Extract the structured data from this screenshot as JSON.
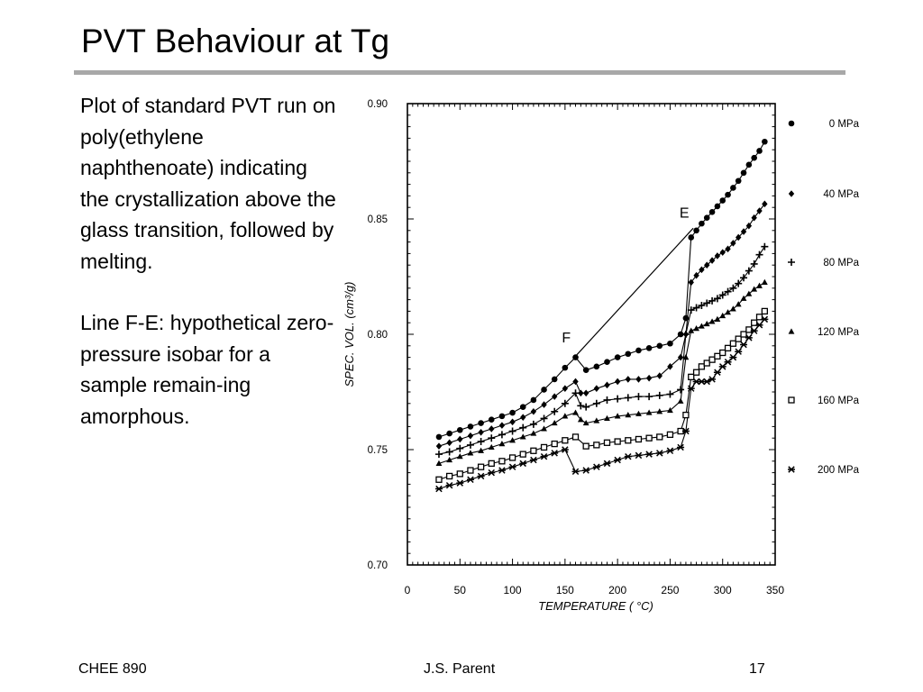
{
  "slide": {
    "title": "PVT Behaviour at Tg",
    "description": [
      "Plot of standard PVT run on poly(ethylene naphthenoate) indicating the crystallization above the glass transition, followed by melting.",
      "Line F-E: hypothetical zero-pressure isobar for a sample remain-ing amorphous."
    ]
  },
  "footer": {
    "left": "CHEE 890",
    "center": "J.S. Parent",
    "right": "17"
  },
  "chart_data": {
    "type": "line",
    "title": "",
    "xlabel": "TEMPERATURE ( °C)",
    "ylabel": "SPEC. VOL. (cm³/g)",
    "xlim": [
      0,
      350
    ],
    "ylim": [
      0.7,
      0.9
    ],
    "xticks": [
      "0",
      "50",
      "100",
      "150",
      "200",
      "250",
      "300",
      "350"
    ],
    "yticks": [
      "0.70",
      "0.75",
      "0.80",
      "0.85",
      "0.90"
    ],
    "grid": false,
    "legend_position": "right",
    "series": [
      {
        "name": "0 MPa",
        "marker": "circle",
        "x": [
          30,
          40,
          50,
          60,
          70,
          80,
          90,
          100,
          110,
          120,
          130,
          140,
          150,
          160,
          170,
          180,
          190,
          200,
          210,
          220,
          230,
          240,
          250,
          260,
          265,
          270,
          275,
          280,
          285,
          290,
          295,
          300,
          305,
          310,
          315,
          320,
          325,
          330,
          335,
          340
        ],
        "y": [
          0.7555,
          0.757,
          0.7585,
          0.76,
          0.7615,
          0.763,
          0.7645,
          0.766,
          0.7685,
          0.7715,
          0.776,
          0.7805,
          0.7855,
          0.79,
          0.7845,
          0.786,
          0.788,
          0.79,
          0.7915,
          0.793,
          0.794,
          0.795,
          0.796,
          0.8,
          0.807,
          0.842,
          0.845,
          0.848,
          0.8505,
          0.853,
          0.8555,
          0.858,
          0.8605,
          0.8635,
          0.8665,
          0.87,
          0.8735,
          0.8765,
          0.8795,
          0.8835
        ]
      },
      {
        "name": "40 MPa",
        "marker": "diamond",
        "x": [
          30,
          40,
          50,
          60,
          70,
          80,
          90,
          100,
          110,
          120,
          130,
          140,
          150,
          160,
          165,
          170,
          180,
          190,
          200,
          210,
          220,
          230,
          240,
          250,
          260,
          265,
          270,
          275,
          280,
          285,
          290,
          295,
          300,
          305,
          310,
          315,
          320,
          325,
          330,
          335,
          340
        ],
        "y": [
          0.7515,
          0.753,
          0.7545,
          0.756,
          0.7575,
          0.759,
          0.7605,
          0.762,
          0.764,
          0.7665,
          0.7695,
          0.773,
          0.7765,
          0.7795,
          0.7745,
          0.7745,
          0.7765,
          0.778,
          0.7795,
          0.7805,
          0.7805,
          0.781,
          0.782,
          0.786,
          0.79,
          0.8,
          0.8225,
          0.8255,
          0.828,
          0.83,
          0.832,
          0.834,
          0.8355,
          0.837,
          0.8395,
          0.842,
          0.8445,
          0.847,
          0.8505,
          0.8535,
          0.8565
        ]
      },
      {
        "name": "80 MPa",
        "marker": "plus",
        "x": [
          30,
          40,
          50,
          60,
          70,
          80,
          90,
          100,
          110,
          120,
          130,
          140,
          150,
          160,
          165,
          170,
          180,
          190,
          200,
          210,
          220,
          230,
          240,
          250,
          260,
          265,
          270,
          275,
          280,
          285,
          290,
          295,
          300,
          305,
          310,
          315,
          320,
          325,
          330,
          335,
          340
        ],
        "y": [
          0.748,
          0.749,
          0.7505,
          0.752,
          0.7535,
          0.755,
          0.7565,
          0.758,
          0.7595,
          0.761,
          0.7635,
          0.7665,
          0.77,
          0.7745,
          0.769,
          0.7685,
          0.77,
          0.7715,
          0.772,
          0.7725,
          0.773,
          0.773,
          0.7735,
          0.774,
          0.776,
          0.8,
          0.8105,
          0.8115,
          0.8125,
          0.8135,
          0.8145,
          0.8155,
          0.817,
          0.8185,
          0.82,
          0.822,
          0.8245,
          0.8275,
          0.8305,
          0.8345,
          0.838
        ]
      },
      {
        "name": "120 MPa",
        "marker": "triangle",
        "x": [
          30,
          40,
          50,
          60,
          70,
          80,
          90,
          100,
          110,
          120,
          130,
          140,
          150,
          160,
          165,
          170,
          180,
          190,
          200,
          210,
          220,
          230,
          240,
          250,
          260,
          265,
          270,
          275,
          280,
          285,
          290,
          295,
          300,
          305,
          310,
          315,
          320,
          325,
          330,
          335,
          340
        ],
        "y": [
          0.744,
          0.7455,
          0.747,
          0.7485,
          0.7495,
          0.751,
          0.7525,
          0.754,
          0.7555,
          0.757,
          0.759,
          0.7615,
          0.7645,
          0.766,
          0.763,
          0.7615,
          0.7625,
          0.7635,
          0.7645,
          0.765,
          0.7655,
          0.766,
          0.7665,
          0.767,
          0.771,
          0.79,
          0.8015,
          0.8025,
          0.8035,
          0.8045,
          0.8055,
          0.8065,
          0.808,
          0.8095,
          0.811,
          0.813,
          0.8155,
          0.8175,
          0.8195,
          0.821,
          0.8225
        ]
      },
      {
        "name": "160 MPa",
        "marker": "square",
        "x": [
          30,
          40,
          50,
          60,
          70,
          80,
          90,
          100,
          110,
          120,
          130,
          140,
          150,
          160,
          170,
          180,
          190,
          200,
          210,
          220,
          230,
          240,
          250,
          260,
          265,
          270,
          275,
          280,
          285,
          290,
          295,
          300,
          305,
          310,
          315,
          320,
          325,
          330,
          335,
          340
        ],
        "y": [
          0.737,
          0.7385,
          0.7395,
          0.741,
          0.7425,
          0.744,
          0.745,
          0.7465,
          0.748,
          0.7495,
          0.751,
          0.7525,
          0.754,
          0.7555,
          0.7515,
          0.752,
          0.753,
          0.7535,
          0.754,
          0.7545,
          0.755,
          0.7555,
          0.7565,
          0.758,
          0.765,
          0.7815,
          0.7835,
          0.786,
          0.7875,
          0.789,
          0.7905,
          0.792,
          0.794,
          0.796,
          0.798,
          0.8,
          0.802,
          0.805,
          0.8075,
          0.81
        ]
      },
      {
        "name": "200 MPa",
        "marker": "star",
        "x": [
          30,
          40,
          50,
          60,
          70,
          80,
          90,
          100,
          110,
          120,
          130,
          140,
          150,
          160,
          170,
          180,
          190,
          200,
          210,
          220,
          230,
          240,
          250,
          260,
          265,
          270,
          275,
          280,
          285,
          290,
          295,
          300,
          305,
          310,
          315,
          320,
          325,
          330,
          335,
          340
        ],
        "y": [
          0.733,
          0.7345,
          0.7355,
          0.737,
          0.7385,
          0.74,
          0.741,
          0.7425,
          0.744,
          0.7455,
          0.747,
          0.7485,
          0.75,
          0.7405,
          0.741,
          0.7425,
          0.744,
          0.7455,
          0.747,
          0.7475,
          0.748,
          0.7485,
          0.7495,
          0.751,
          0.758,
          0.7765,
          0.7795,
          0.7795,
          0.7795,
          0.7805,
          0.7835,
          0.786,
          0.788,
          0.79,
          0.7925,
          0.7955,
          0.7985,
          0.8015,
          0.804,
          0.8065
        ]
      }
    ],
    "annotations": [
      {
        "text": "F",
        "x": 160,
        "y": 0.7905,
        "label_x": 147,
        "label_y": 0.7965
      },
      {
        "text": "E",
        "x": 272,
        "y": 0.846,
        "label_x": 259,
        "label_y": 0.8505
      }
    ],
    "reference_line": {
      "label": "F-E",
      "from": [
        160,
        0.7905
      ],
      "to": [
        272,
        0.846
      ]
    }
  }
}
